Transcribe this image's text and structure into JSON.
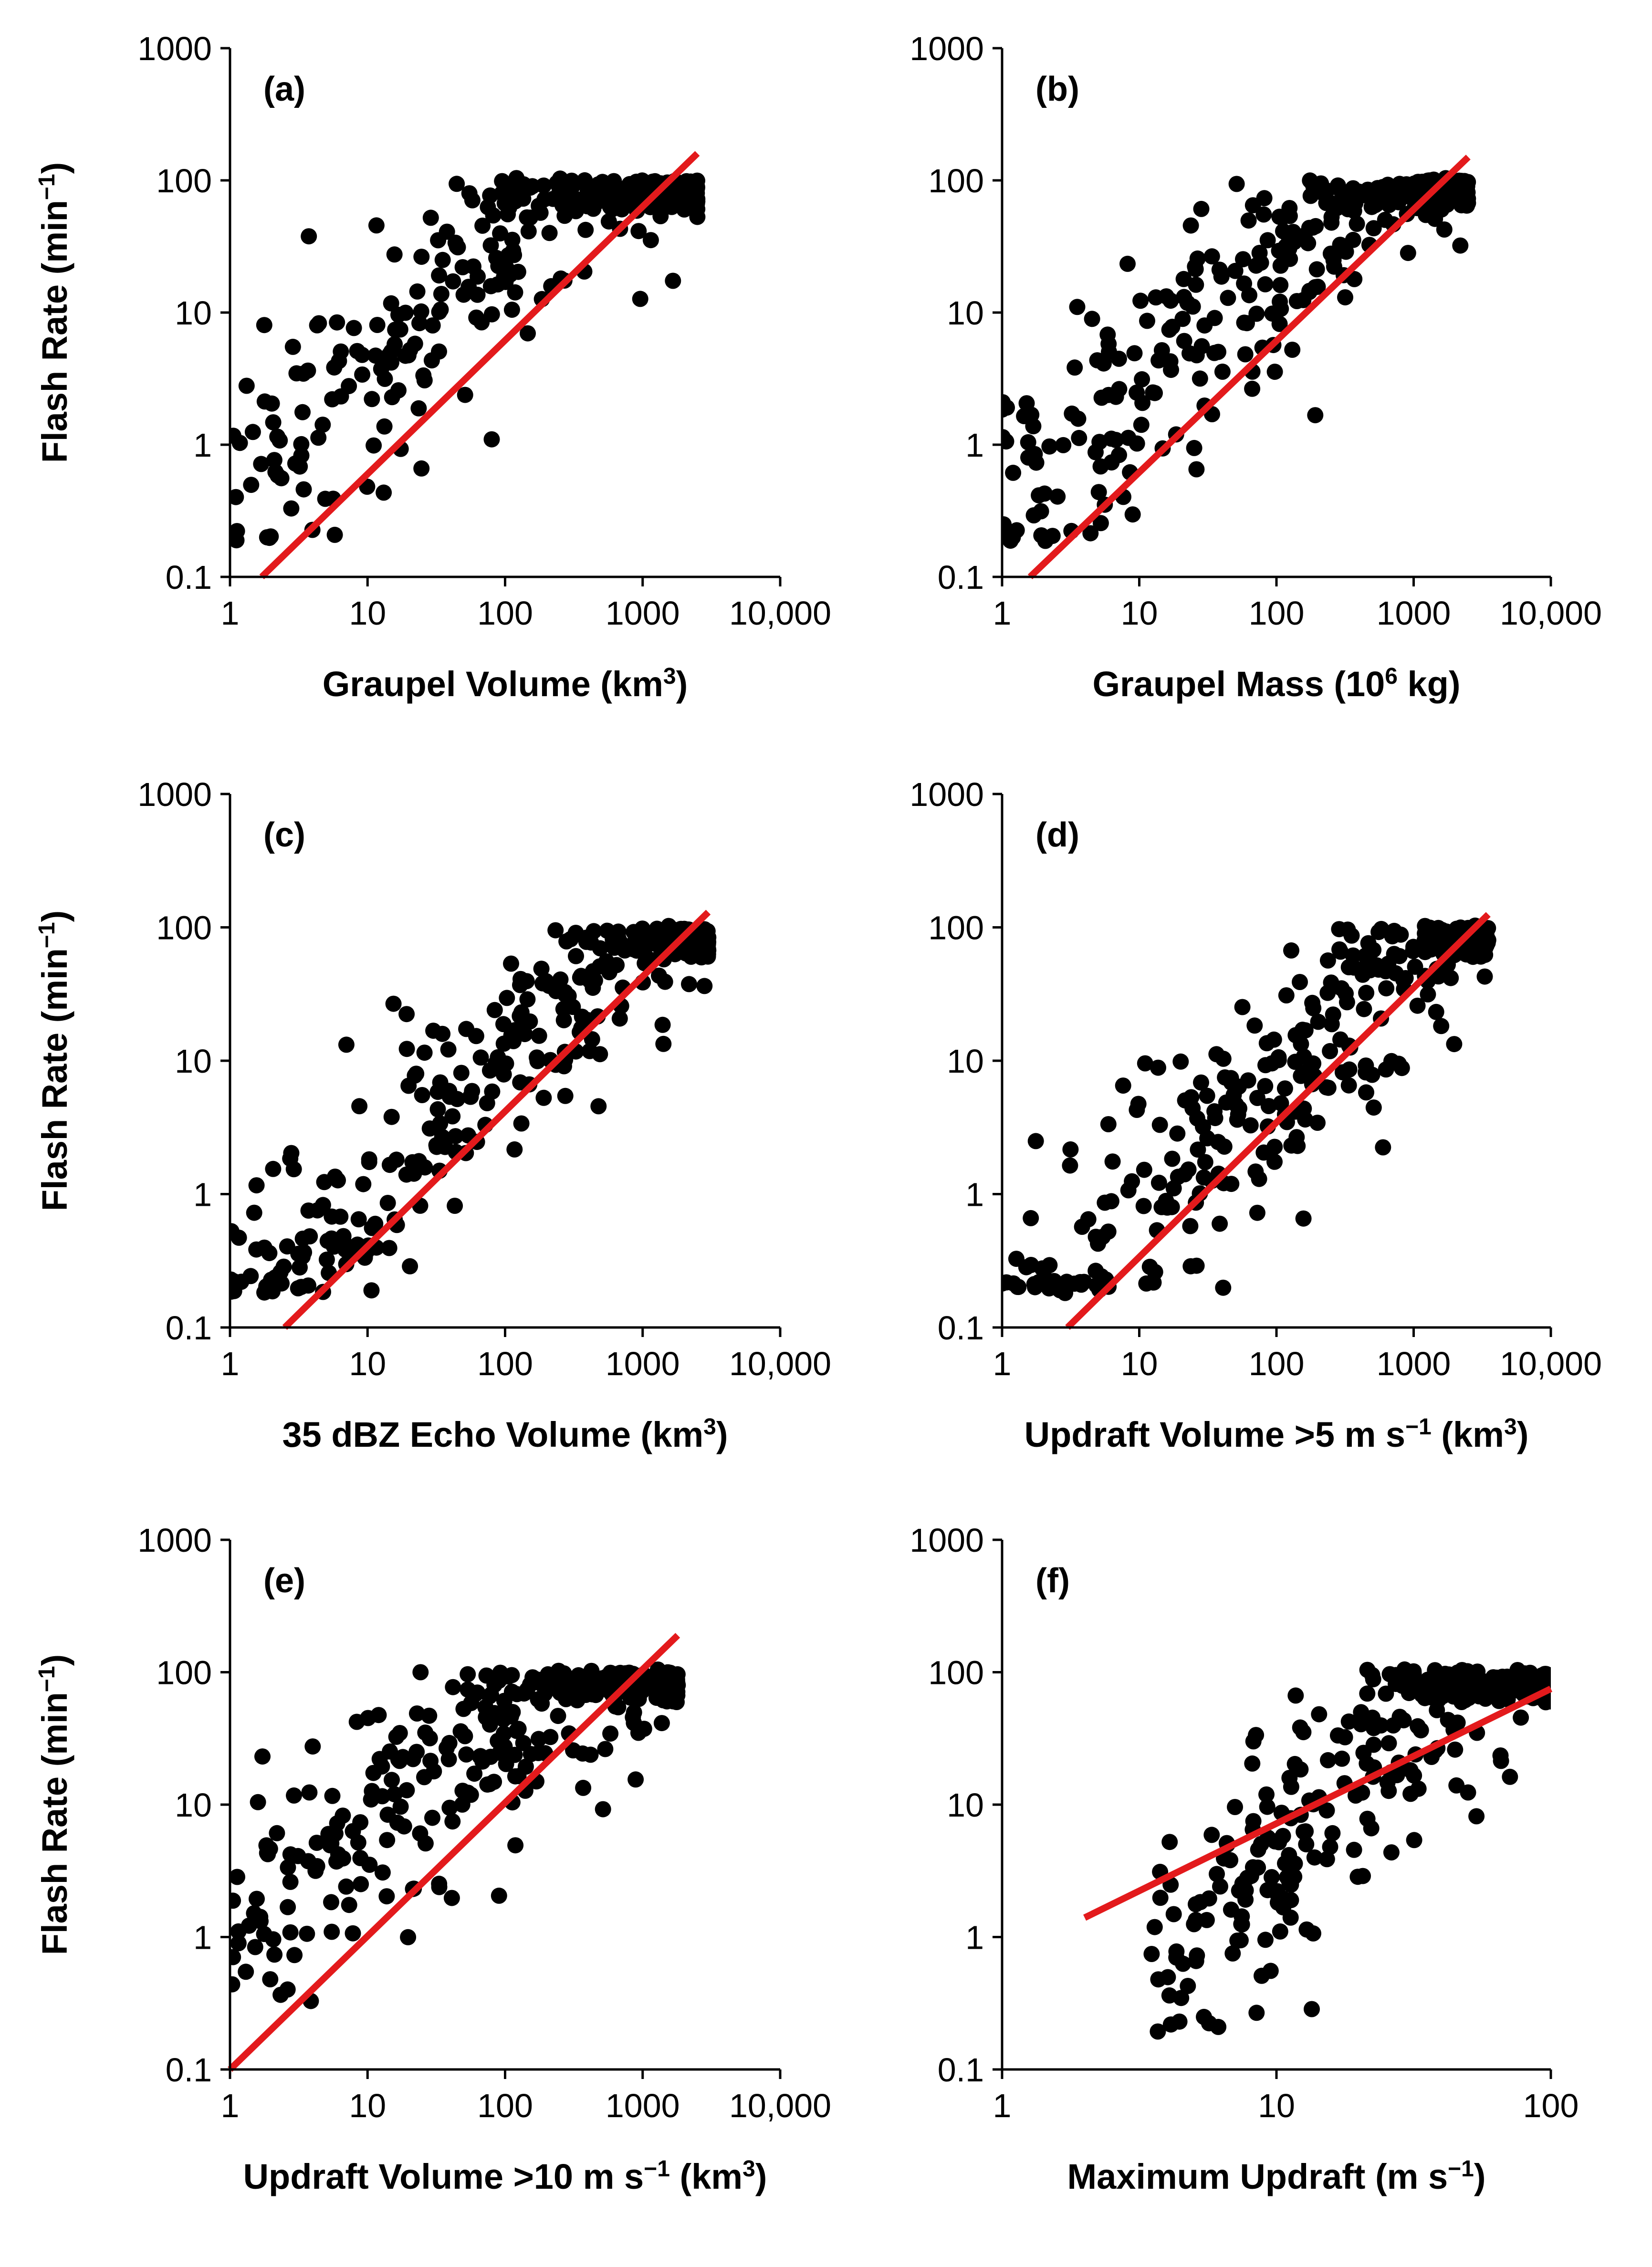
{
  "figure": {
    "colors": {
      "points": "#000000",
      "fit_line": "#e31a1c",
      "axes": "#000000",
      "background": "#ffffff"
    }
  },
  "chart_data": [
    {
      "id": "a",
      "type": "scatter",
      "panel_label": "(a)",
      "xlabel": "Graupel Volume (km",
      "xlabel_sup": "3",
      "xlabel_tail": ")",
      "ylabel": "Flash Rate (min",
      "ylabel_sup": "−1",
      "ylabel_tail": ")",
      "xscale": "log",
      "yscale": "log",
      "xlim": [
        1,
        10000
      ],
      "ylim": [
        0.1,
        1000
      ],
      "xticks": [
        1,
        10,
        100,
        1000,
        10000
      ],
      "xtick_labels": [
        "1",
        "10",
        "100",
        "1000",
        "10,000"
      ],
      "yticks": [
        0.1,
        1,
        10,
        100,
        1000
      ],
      "ytick_labels": [
        "0.1",
        "1",
        "10",
        "100",
        "1000"
      ],
      "fit_line": {
        "x": [
          1.7,
          2500
        ],
        "y": [
          0.1,
          160
        ]
      },
      "cloud": {
        "xmin": 1,
        "xmax": 2500,
        "slope": 0.95,
        "intercept": -0.35,
        "scatter": 0.42,
        "count": 330
      }
    },
    {
      "id": "b",
      "type": "scatter",
      "panel_label": "(b)",
      "xlabel": "Graupel Mass (10",
      "xlabel_sup": "6",
      "xlabel_tail": " kg)",
      "ylabel": "",
      "ylabel_sup": "",
      "ylabel_tail": "",
      "xscale": "log",
      "yscale": "log",
      "xlim": [
        1,
        10000
      ],
      "ylim": [
        0.1,
        1000
      ],
      "xticks": [
        1,
        10,
        100,
        1000,
        10000
      ],
      "xtick_labels": [
        "1",
        "10",
        "100",
        "1000",
        "10,000"
      ],
      "yticks": [
        0.1,
        1,
        10,
        100,
        1000
      ],
      "ytick_labels": [
        "0.1",
        "1",
        "10",
        "100",
        "1000"
      ],
      "fit_line": {
        "x": [
          1.6,
          2500
        ],
        "y": [
          0.1,
          150
        ]
      },
      "cloud": {
        "xmin": 1,
        "xmax": 2500,
        "slope": 0.92,
        "intercept": -0.4,
        "scatter": 0.45,
        "count": 330
      }
    },
    {
      "id": "c",
      "type": "scatter",
      "panel_label": "(c)",
      "xlabel": "35 dBZ Echo Volume (km",
      "xlabel_sup": "3",
      "xlabel_tail": ")",
      "ylabel": "Flash Rate (min",
      "ylabel_sup": "−1",
      "ylabel_tail": ")",
      "xscale": "log",
      "yscale": "log",
      "xlim": [
        1,
        10000
      ],
      "ylim": [
        0.1,
        1000
      ],
      "xticks": [
        1,
        10,
        100,
        1000,
        10000
      ],
      "xtick_labels": [
        "1",
        "10",
        "100",
        "1000",
        "10,000"
      ],
      "yticks": [
        0.1,
        1,
        10,
        100,
        1000
      ],
      "ytick_labels": [
        "0.1",
        "1",
        "10",
        "100",
        "1000"
      ],
      "fit_line": {
        "x": [
          2.5,
          3000
        ],
        "y": [
          0.1,
          130
        ]
      },
      "cloud": {
        "xmin": 1,
        "xmax": 3000,
        "slope": 1.0,
        "intercept": -0.95,
        "scatter": 0.4,
        "count": 330
      }
    },
    {
      "id": "d",
      "type": "scatter",
      "panel_label": "(d)",
      "xlabel": "Updraft Volume >5 m s",
      "xlabel_sup": "−1",
      "xlabel_tail": " (km",
      "xlabel_sup2": "3",
      "xlabel_tail2": ")",
      "ylabel": "",
      "ylabel_sup": "",
      "ylabel_tail": "",
      "xscale": "log",
      "yscale": "log",
      "xlim": [
        1,
        10000
      ],
      "ylim": [
        0.1,
        1000
      ],
      "xticks": [
        1,
        10,
        100,
        1000,
        10000
      ],
      "xtick_labels": [
        "1",
        "10",
        "100",
        "1000",
        "10,000"
      ],
      "yticks": [
        0.1,
        1,
        10,
        100,
        1000
      ],
      "ytick_labels": [
        "0.1",
        "1",
        "10",
        "100",
        "1000"
      ],
      "fit_line": {
        "x": [
          3,
          3500
        ],
        "y": [
          0.1,
          125
        ]
      },
      "cloud": {
        "xmin": 1,
        "xmax": 3500,
        "slope": 0.95,
        "intercept": -1.0,
        "scatter": 0.45,
        "count": 320
      }
    },
    {
      "id": "e",
      "type": "scatter",
      "panel_label": "(e)",
      "xlabel": "Updraft Volume >10 m s",
      "xlabel_sup": "−1",
      "xlabel_tail": " (km",
      "xlabel_sup2": "3",
      "xlabel_tail2": ")",
      "ylabel": "Flash Rate (min",
      "ylabel_sup": "−1",
      "ylabel_tail": ")",
      "xscale": "log",
      "yscale": "log",
      "xlim": [
        1,
        10000
      ],
      "ylim": [
        0.1,
        1000
      ],
      "xticks": [
        1,
        10,
        100,
        1000,
        10000
      ],
      "xtick_labels": [
        "1",
        "10",
        "100",
        "1000",
        "10,000"
      ],
      "yticks": [
        0.1,
        1,
        10,
        100,
        1000
      ],
      "ytick_labels": [
        "0.1",
        "1",
        "10",
        "100",
        "1000"
      ],
      "fit_line": {
        "x": [
          1,
          1800
        ],
        "y": [
          0.1,
          190
        ]
      },
      "cloud": {
        "xmin": 1,
        "xmax": 1800,
        "slope": 0.75,
        "intercept": 0.1,
        "scatter": 0.4,
        "count": 320
      }
    },
    {
      "id": "f",
      "type": "scatter",
      "panel_label": "(f)",
      "xlabel": "Maximum Updraft (m s",
      "xlabel_sup": "−1",
      "xlabel_tail": ")",
      "ylabel": "",
      "ylabel_sup": "",
      "ylabel_tail": "",
      "xscale": "log",
      "yscale": "log",
      "xlim": [
        1,
        100
      ],
      "ylim": [
        0.1,
        1000
      ],
      "xticks": [
        1,
        10,
        100
      ],
      "xtick_labels": [
        "1",
        "10",
        "100"
      ],
      "yticks": [
        0.1,
        1,
        10,
        100,
        1000
      ],
      "ytick_labels": [
        "0.1",
        "1",
        "10",
        "100",
        "1000"
      ],
      "fit_line": {
        "x": [
          2,
          100
        ],
        "y": [
          1.4,
          75
        ]
      },
      "cloud": {
        "xmin": 3.5,
        "xmax": 100,
        "slope": 2.2,
        "intercept": -1.5,
        "scatter": 0.5,
        "count": 330
      }
    }
  ]
}
